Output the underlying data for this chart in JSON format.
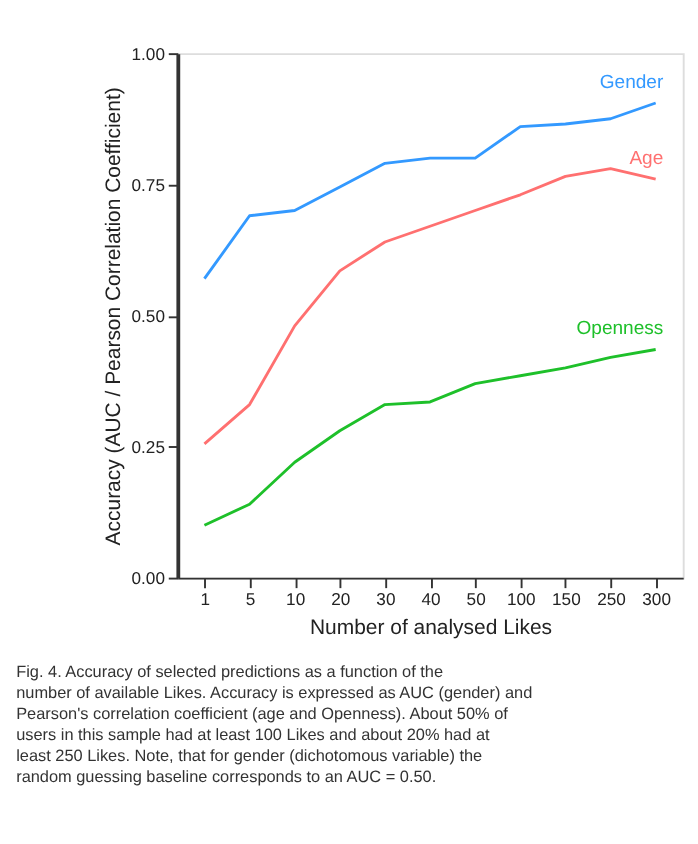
{
  "chart_data": {
    "type": "line",
    "xlabel": "Number of analysed Likes",
    "ylabel": "Accuracy (AUC / Pearson Correlation Coefficient)",
    "categories": [
      "1",
      "5",
      "10",
      "20",
      "30",
      "40",
      "50",
      "100",
      "150",
      "250",
      "300"
    ],
    "series": [
      {
        "name": "Gender",
        "color": "#3399ff",
        "values": [
          0.57,
          0.69,
          0.7,
          0.745,
          0.79,
          0.8,
          0.8,
          0.86,
          0.865,
          0.875,
          0.905
        ]
      },
      {
        "name": "Age",
        "color": "#ff7070",
        "values": [
          0.255,
          0.33,
          0.48,
          0.585,
          0.64,
          0.67,
          0.7,
          0.73,
          0.765,
          0.78,
          0.76
        ]
      },
      {
        "name": "Openness",
        "color": "#1ec02a",
        "values": [
          0.1,
          0.14,
          0.22,
          0.28,
          0.33,
          0.335,
          0.37,
          0.385,
          0.4,
          0.42,
          0.435
        ]
      }
    ],
    "ylim": [
      0,
      1
    ],
    "yticks": [
      {
        "value": 0,
        "label": "0.00"
      },
      {
        "value": 0.25,
        "label": "0.25"
      },
      {
        "value": 0.5,
        "label": "0.50"
      },
      {
        "value": 0.75,
        "label": "0.75"
      },
      {
        "value": 1,
        "label": "1.00"
      }
    ],
    "grid": false,
    "legend": false,
    "marker": "none",
    "line_style": "solid",
    "annotations": [
      "Fig. 4.  Accuracy of selected predictions as a function of the number of available Likes. Accuracy is expressed as AUC (gender) and Pearson's correlation coefficient (age and Openness). About 50% of users in this sample had at least 100 Likes and about 20% had at least 250 Likes. Note, that for gender (dichotomous variable) the random guessing baseline corresponds to an AUC = 0.50."
    ]
  }
}
